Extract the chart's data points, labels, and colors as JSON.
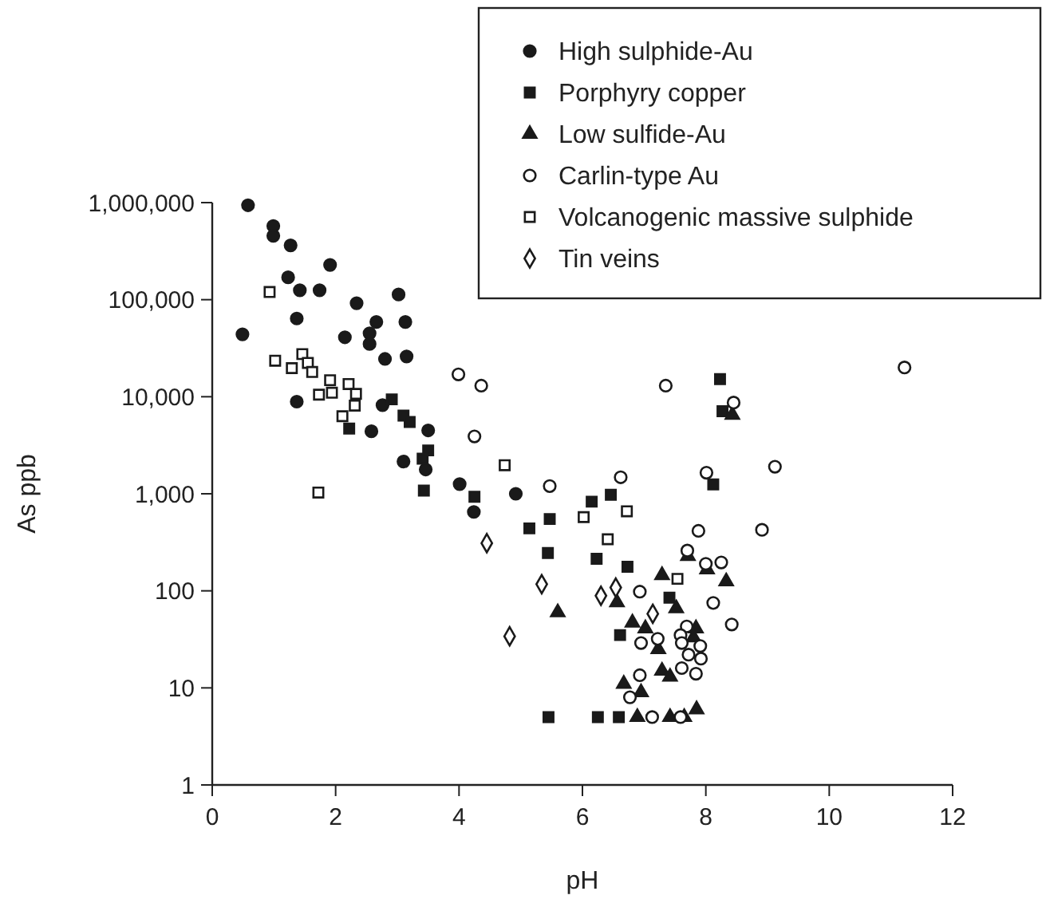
{
  "chart_data": {
    "type": "scatter",
    "xlabel": "pH",
    "ylabel": "As ppb",
    "log": "y",
    "grid": false,
    "legend": "top right",
    "xlim": [
      0,
      12
    ],
    "xticks": [
      0,
      2,
      4,
      6,
      8,
      10,
      12
    ],
    "ylim": [
      1,
      1000000
    ],
    "yticks": [
      1,
      10,
      100,
      {
        "value": 1000,
        "label": "1,000"
      },
      {
        "value": 10000,
        "label": "10,000"
      },
      {
        "value": 100000,
        "label": "100,000"
      },
      {
        "value": 1000000,
        "label": "1,000,000"
      }
    ],
    "series": [
      {
        "name": "High sulphide-Au",
        "color": "#1a1a1a",
        "marker": "circle",
        "x": [
          0.58,
          0.99,
          0.99,
          1.27,
          1.91,
          1.23,
          1.42,
          1.74,
          3.02,
          2.34,
          1.37,
          2.66,
          3.13,
          0.49,
          2.15,
          2.55,
          2.55,
          2.8,
          3.15,
          1.37,
          2.76,
          2.58,
          3.5,
          3.1,
          3.46,
          4.01,
          4.24,
          4.92
        ],
        "values": [
          940000,
          575000,
          455000,
          363000,
          228000,
          170000,
          125000,
          125000,
          113000,
          92000,
          64000,
          59000,
          59000,
          44000,
          41000,
          45000,
          35000,
          24500,
          26000,
          8900,
          8200,
          4400,
          4500,
          2150,
          1780,
          1260,
          650,
          1000
        ]
      },
      {
        "name": "Porphyry copper",
        "color": "#1a1a1a",
        "marker": "square",
        "x": [
          2.91,
          3.1,
          3.2,
          2.22,
          3.5,
          3.41,
          3.43,
          4.25,
          5.14,
          5.47,
          5.44,
          6.15,
          6.46,
          6.23,
          6.73,
          6.61,
          7.41,
          5.45,
          6.25,
          6.59,
          8.23,
          8.27,
          8.12
        ],
        "values": [
          9400,
          6400,
          5500,
          4700,
          2800,
          2300,
          1080,
          930,
          440,
          550,
          245,
          830,
          975,
          214,
          177,
          35,
          85,
          5,
          5,
          5,
          15200,
          7100,
          1250
        ]
      },
      {
        "name": "Low sulfide-Au",
        "color": "#1a1a1a",
        "marker": "triangle",
        "x": [
          8.43,
          5.6,
          7.29,
          7.71,
          8.02,
          8.33,
          6.56,
          7.52,
          6.81,
          7.02,
          7.23,
          7.84,
          7.8,
          7.29,
          7.42,
          6.67,
          6.95,
          6.89,
          7.42,
          7.65,
          7.85
        ],
        "values": [
          6500,
          60,
          145,
          228,
          166,
          125,
          76,
          66,
          47,
          41,
          25,
          41,
          33,
          15,
          13,
          11,
          9,
          5,
          5,
          5,
          6
        ]
      },
      {
        "name": "Carlin-type Au",
        "color": "#ffffff",
        "marker": "circle",
        "x": [
          3.99,
          4.36,
          4.25,
          11.22,
          7.35,
          8.45,
          9.12,
          8.01,
          6.62,
          5.47,
          8.91,
          7.88,
          7.7,
          8.0,
          8.25,
          6.93,
          8.12,
          8.42,
          7.69,
          7.59,
          7.61,
          7.22,
          6.95,
          7.91,
          7.72,
          7.92,
          7.61,
          7.84,
          6.93,
          6.77,
          7.13,
          7.59
        ],
        "values": [
          17000,
          13000,
          3900,
          20000,
          13000,
          8700,
          1900,
          1650,
          1480,
          1200,
          425,
          415,
          260,
          190,
          196,
          98,
          75,
          45,
          43,
          35,
          29,
          32,
          29,
          27,
          22,
          20,
          16,
          14,
          13.5,
          8,
          5,
          5
        ]
      },
      {
        "name": "Volcanogenic massive sulphide",
        "color": "#ffffff",
        "marker": "square",
        "x": [
          0.93,
          1.02,
          1.29,
          1.46,
          1.55,
          1.62,
          1.91,
          1.73,
          1.94,
          2.21,
          2.33,
          2.31,
          2.11,
          1.72,
          4.74,
          6.02,
          6.72,
          6.41,
          7.54
        ],
        "values": [
          120000,
          23500,
          19700,
          27500,
          22300,
          18000,
          14800,
          10500,
          11000,
          13500,
          10700,
          8100,
          6300,
          1030,
          1970,
          575,
          660,
          340,
          133
        ]
      },
      {
        "name": "Tin veins",
        "color": "#ffffff",
        "marker": "diamond",
        "x": [
          4.45,
          5.34,
          4.82,
          6.3,
          6.54,
          7.14
        ],
        "values": [
          310,
          117,
          34,
          89,
          108,
          58
        ]
      }
    ]
  }
}
